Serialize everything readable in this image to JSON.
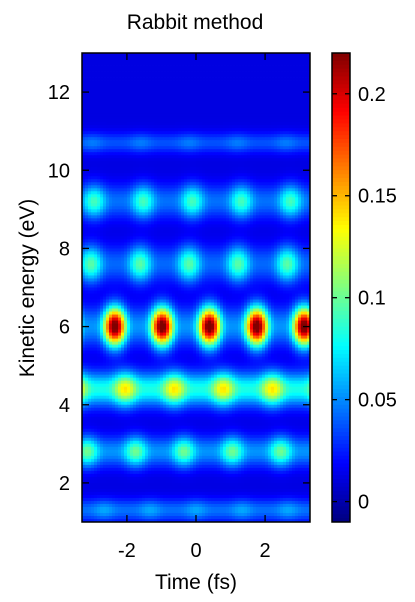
{
  "chart_data": {
    "type": "heatmap",
    "title": "Rabbit method",
    "xlabel": "Time (fs)",
    "ylabel": "Kinetic energy (eV)",
    "xlim": [
      -3.3,
      3.3
    ],
    "ylim": [
      1.0,
      13.0
    ],
    "xticks": [
      -2,
      0,
      2
    ],
    "xtick_labels": [
      "-2",
      "0",
      "2"
    ],
    "yticks": [
      2,
      4,
      6,
      8,
      10,
      12
    ],
    "ytick_labels": [
      "2",
      "4",
      "6",
      "8",
      "10",
      "12"
    ],
    "colorbar": {
      "range": [
        -0.01,
        0.22
      ],
      "ticks": [
        0,
        0.05,
        0.1,
        0.15,
        0.2
      ],
      "tick_labels": [
        "0",
        "0.05",
        "0.1",
        "0.15",
        "0.2"
      ],
      "colormap": "jet"
    },
    "background_value": 0.012,
    "bands": [
      {
        "energy_eV": 1.3,
        "peak": 0.045,
        "baseline": 0.032,
        "period_fs": 1.33,
        "phase_fs": 0.0,
        "width_eV": 0.28
      },
      {
        "energy_eV": 2.8,
        "peak": 0.09,
        "baseline": 0.04,
        "period_fs": 1.4,
        "phase_fs": -0.35,
        "width_eV": 0.38
      },
      {
        "energy_eV": 4.4,
        "peak": 0.128,
        "baseline": 0.07,
        "period_fs": 1.42,
        "phase_fs": -2.05,
        "width_eV": 0.42
      },
      {
        "energy_eV": 6.0,
        "peak": 0.22,
        "baseline": 0.04,
        "period_fs": 1.37,
        "phase_fs": -2.35,
        "width_eV": 0.48
      },
      {
        "energy_eV": 7.6,
        "peak": 0.085,
        "baseline": 0.03,
        "period_fs": 1.42,
        "phase_fs": -1.62,
        "width_eV": 0.45
      },
      {
        "energy_eV": 9.2,
        "peak": 0.08,
        "baseline": 0.032,
        "period_fs": 1.42,
        "phase_fs": -2.95,
        "width_eV": 0.42
      },
      {
        "energy_eV": 10.7,
        "peak": 0.035,
        "baseline": 0.025,
        "period_fs": 1.4,
        "phase_fs": -1.6,
        "width_eV": 0.25
      }
    ]
  }
}
